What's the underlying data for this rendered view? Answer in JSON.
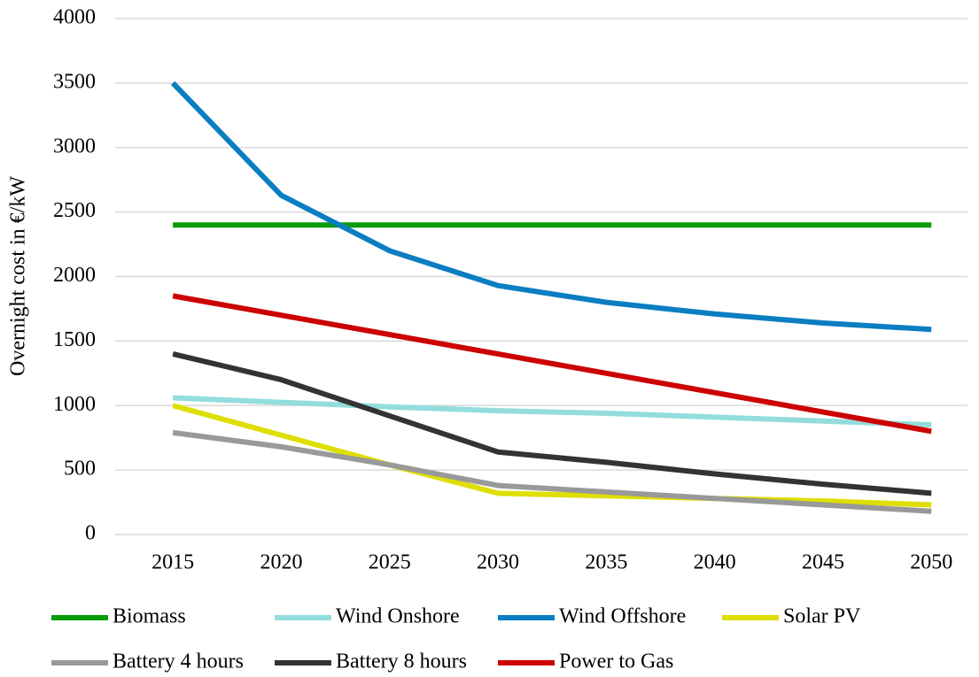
{
  "chart_data": {
    "type": "line",
    "y_label": "Overnight cost in €/kW",
    "categories": [
      "2015",
      "2020",
      "2025",
      "2030",
      "2035",
      "2040",
      "2045",
      "2050"
    ],
    "ylim": [
      0,
      4000
    ],
    "yticks": [
      0,
      500,
      1000,
      1500,
      2000,
      2500,
      3000,
      3500,
      4000
    ],
    "grid": true,
    "legend": "bottom",
    "series": [
      {
        "name": "Biomass",
        "color": "#0a9a0a",
        "values": [
          2400,
          2400,
          2400,
          2400,
          2400,
          2400,
          2400,
          2400
        ]
      },
      {
        "name": "Wind Onshore",
        "color": "#93dcdc",
        "values": [
          1060,
          1025,
          990,
          960,
          940,
          910,
          880,
          850
        ]
      },
      {
        "name": "Wind Offshore",
        "color": "#0b7ec2",
        "values": [
          3500,
          2630,
          2200,
          1930,
          1800,
          1710,
          1640,
          1590
        ]
      },
      {
        "name": "Solar PV",
        "color": "#dede00",
        "values": [
          1000,
          770,
          540,
          320,
          300,
          280,
          260,
          230
        ]
      },
      {
        "name": "Battery 4 hours",
        "color": "#999999",
        "values": [
          790,
          680,
          540,
          380,
          330,
          280,
          230,
          180
        ]
      },
      {
        "name": "Battery 8 hours",
        "color": "#333333",
        "values": [
          1400,
          1200,
          920,
          640,
          560,
          470,
          390,
          320
        ]
      },
      {
        "name": "Power to Gas",
        "color": "#cc0000",
        "values": [
          1850,
          1700,
          1550,
          1400,
          1250,
          1100,
          950,
          800
        ]
      }
    ]
  }
}
